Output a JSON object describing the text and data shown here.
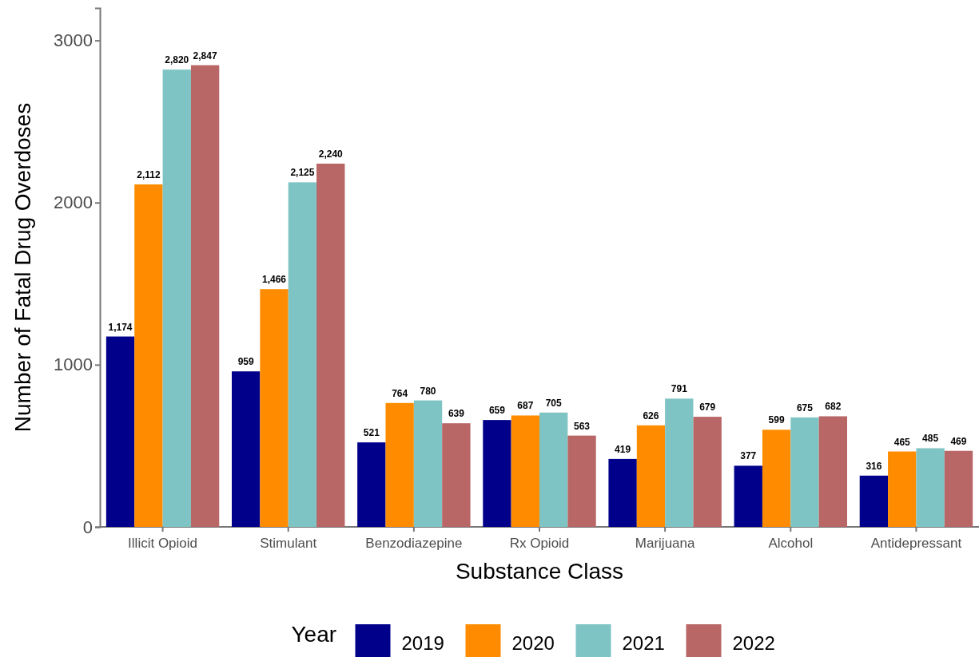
{
  "chart_data": {
    "type": "bar",
    "xlabel": "Substance Class",
    "ylabel": "Number of Fatal Drug Overdoses",
    "legend_title": "Year",
    "categories": [
      "Illicit Opioid",
      "Stimulant",
      "Benzodiazepine",
      "Rx Opioid",
      "Marijuana",
      "Alcohol",
      "Antidepressant"
    ],
    "series": [
      {
        "name": "2019",
        "color": "#00008b",
        "values": [
          1174,
          959,
          521,
          659,
          419,
          377,
          316
        ],
        "value_labels": [
          "1,174",
          "959",
          "521",
          "659",
          "419",
          "377",
          "316"
        ]
      },
      {
        "name": "2020",
        "color": "#ff8c00",
        "values": [
          2112,
          1466,
          764,
          687,
          626,
          599,
          465
        ],
        "value_labels": [
          "2,112",
          "1,466",
          "764",
          "687",
          "626",
          "599",
          "465"
        ]
      },
      {
        "name": "2021",
        "color": "#7fc4c4",
        "values": [
          2820,
          2125,
          780,
          705,
          791,
          675,
          485
        ],
        "value_labels": [
          "2,820",
          "2,125",
          "780",
          "705",
          "791",
          "675",
          "485"
        ]
      },
      {
        "name": "2022",
        "color": "#b86666",
        "values": [
          2847,
          2240,
          639,
          563,
          679,
          682,
          469
        ],
        "value_labels": [
          "2,847",
          "2,240",
          "639",
          "563",
          "679",
          "682",
          "469"
        ]
      }
    ],
    "ylim": [
      0,
      3200
    ],
    "yticks": [
      0,
      1000,
      2000,
      3000
    ],
    "legend": "bottom"
  }
}
